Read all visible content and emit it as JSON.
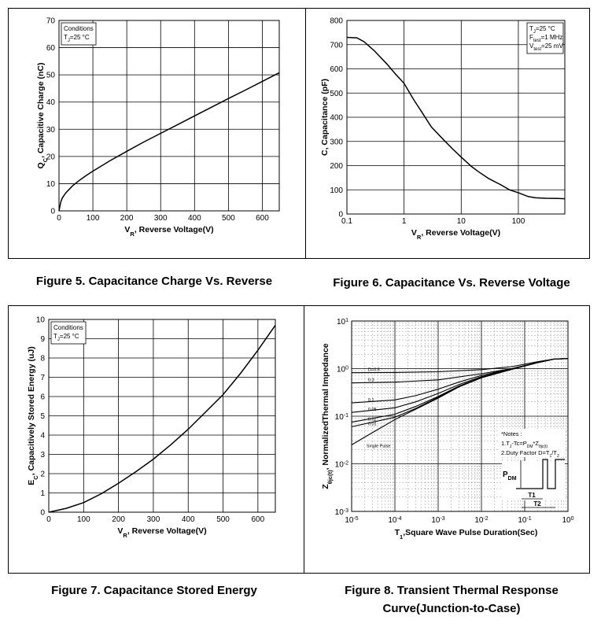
{
  "captions": {
    "fig5": "Figure 5. Capacitance Charge Vs. Reverse",
    "fig6": "Figure 6. Capacitance Vs. Reverse Voltage",
    "fig7": "Figure 7. Capacitance Stored Energy",
    "fig8_line1": "Figure 8. Transient Thermal Response",
    "fig8_line2": "Curve(Junction-to-Case)"
  },
  "chart_data": [
    {
      "id": "fig5",
      "type": "line",
      "xlabel": {
        "main": "V",
        "sub": "R",
        "rest": ", Reverse Voltage(V)"
      },
      "ylabel": {
        "main": "Q",
        "sub": "C",
        "rest": ", Capacitive Charge (nC)"
      },
      "xlim": [
        0,
        650
      ],
      "ylim": [
        0,
        70
      ],
      "xticks": [
        0,
        100,
        200,
        300,
        400,
        500,
        600
      ],
      "yticks": [
        0,
        10,
        20,
        30,
        40,
        50,
        60,
        70
      ],
      "conditions": [
        [
          "Conditions"
        ],
        [
          "T",
          "J",
          "=25 °C"
        ]
      ],
      "series": [
        {
          "x": [
            0,
            5,
            10,
            20,
            40,
            60,
            80,
            100,
            150,
            200,
            250,
            300,
            350,
            400,
            450,
            500,
            550,
            600,
            650
          ],
          "y": [
            0,
            3.2,
            4.8,
            6.6,
            9.2,
            11.2,
            13.0,
            14.6,
            18.4,
            21.9,
            25.3,
            28.5,
            31.7,
            34.9,
            38.1,
            41.3,
            44.4,
            47.6,
            50.8
          ]
        }
      ],
      "grid": true
    },
    {
      "id": "fig6",
      "type": "line",
      "xscale": "log",
      "xlabel": {
        "main": "V",
        "sub": "R",
        "rest": ", Reverse Voltage(V)"
      },
      "ylabel": {
        "main": "C",
        "sub": "",
        "rest": ", Capacitance (pF)"
      },
      "xlim": [
        0.1,
        650
      ],
      "ylim": [
        0,
        800
      ],
      "xticks": [
        0.1,
        1,
        10,
        100
      ],
      "xtick_labels": [
        "0.1",
        "1",
        "10",
        "100"
      ],
      "yticks": [
        0,
        100,
        200,
        300,
        400,
        500,
        600,
        700,
        800
      ],
      "conditions": [
        [
          "T",
          "J",
          "=25 °C"
        ],
        [
          "F",
          "test",
          "=1 MHz"
        ],
        [
          "V",
          "test",
          "=25 mV"
        ]
      ],
      "series": [
        {
          "x": [
            0.1,
            0.15,
            0.2,
            0.3,
            0.5,
            0.7,
            1,
            1.5,
            2,
            3,
            5,
            7,
            10,
            15,
            20,
            30,
            50,
            70,
            100,
            150,
            200,
            300,
            500,
            650
          ],
          "y": [
            730,
            728,
            712,
            675,
            620,
            580,
            540,
            470,
            425,
            360,
            305,
            270,
            235,
            197,
            175,
            147,
            120,
            100,
            88,
            72,
            67,
            65,
            64,
            63
          ]
        }
      ],
      "grid": true
    },
    {
      "id": "fig7",
      "type": "line",
      "xlabel": {
        "main": "V",
        "sub": "R",
        "rest": ", Reverse Voltage(V)"
      },
      "ylabel": {
        "main": "E",
        "sub": "C",
        "rest": ", Capacitively Stored Energy (uJ)"
      },
      "xlim": [
        0,
        650
      ],
      "ylim": [
        0,
        10
      ],
      "xticks": [
        0,
        100,
        200,
        300,
        400,
        500,
        600
      ],
      "yticks": [
        0,
        1,
        2,
        3,
        4,
        5,
        6,
        7,
        8,
        9,
        10
      ],
      "conditions": [
        [
          "Conditions"
        ],
        [
          "T",
          "J",
          "=25 °C"
        ]
      ],
      "series": [
        {
          "x": [
            0,
            50,
            100,
            150,
            200,
            250,
            300,
            350,
            400,
            450,
            500,
            550,
            600,
            650
          ],
          "y": [
            0,
            0.2,
            0.5,
            0.95,
            1.5,
            2.1,
            2.75,
            3.5,
            4.3,
            5.2,
            6.1,
            7.2,
            8.4,
            9.7
          ]
        }
      ],
      "grid": true
    },
    {
      "id": "fig8",
      "type": "line",
      "xscale": "log",
      "yscale": "log",
      "xlabel": {
        "main": "T",
        "sub": "1",
        "rest": ",Square Wave Pulse Duration(Sec)"
      },
      "ylabel": {
        "main": "Z",
        "sub": "θjc(t)",
        "rest": ", NormalizedThermal Impedance"
      },
      "xlim": [
        1e-05,
        1
      ],
      "ylim": [
        0.001,
        10
      ],
      "xtick_exponents": [
        "-5",
        "-4",
        "-3",
        "-2",
        "-1",
        "0"
      ],
      "ytick_exponents": [
        "1",
        "0",
        "-1",
        "-2",
        "-3"
      ],
      "series": [
        {
          "name": "D=0.5",
          "x": [
            1e-05,
            0.0001,
            0.001,
            0.01,
            0.05,
            0.2,
            0.5,
            1
          ],
          "y": [
            0.82,
            0.83,
            0.86,
            0.95,
            1.1,
            1.4,
            1.6,
            1.62
          ]
        },
        {
          "name": "0.3",
          "x": [
            1e-05,
            0.0001,
            0.001,
            0.01,
            0.05,
            0.2,
            0.5,
            1
          ],
          "y": [
            0.5,
            0.52,
            0.58,
            0.78,
            1.0,
            1.35,
            1.6,
            1.62
          ]
        },
        {
          "name": "0.1",
          "x": [
            1e-05,
            0.0001,
            0.0003,
            0.001,
            0.003,
            0.01,
            0.05,
            0.2,
            0.5,
            1
          ],
          "y": [
            0.19,
            0.22,
            0.27,
            0.37,
            0.52,
            0.72,
            1.0,
            1.35,
            1.6,
            1.62
          ]
        },
        {
          "name": "0.05",
          "x": [
            1e-05,
            0.0001,
            0.0003,
            0.001,
            0.003,
            0.01,
            0.05,
            0.2,
            0.5,
            1
          ],
          "y": [
            0.12,
            0.15,
            0.2,
            0.3,
            0.46,
            0.68,
            0.98,
            1.34,
            1.6,
            1.62
          ]
        },
        {
          "name": "0.02",
          "x": [
            1e-05,
            0.0001,
            0.0003,
            0.001,
            0.003,
            0.01,
            0.05,
            0.2,
            0.5,
            1
          ],
          "y": [
            0.075,
            0.11,
            0.16,
            0.26,
            0.43,
            0.66,
            0.97,
            1.34,
            1.6,
            1.62
          ]
        },
        {
          "name": "0.01",
          "x": [
            1e-05,
            0.0001,
            0.0003,
            0.001,
            0.003,
            0.01,
            0.05,
            0.2,
            0.5,
            1
          ],
          "y": [
            0.06,
            0.095,
            0.145,
            0.25,
            0.42,
            0.65,
            0.97,
            1.34,
            1.6,
            1.62
          ]
        },
        {
          "name": "Single Pulse",
          "x": [
            1e-05,
            3e-05,
            0.0001,
            0.0003,
            0.001,
            0.003,
            0.01,
            0.05,
            0.2,
            0.5,
            1
          ],
          "y": [
            0.025,
            0.045,
            0.085,
            0.14,
            0.24,
            0.41,
            0.64,
            0.96,
            1.33,
            1.6,
            1.62
          ]
        }
      ],
      "notes": {
        "title": "*Notes :",
        "line1": "1.T",
        "line1b": "-Tc=P",
        "line1c": "*Z",
        "line1d": "θjc(t)",
        "line2": "2.Duty Factor D=T",
        "line2b": "/T"
      },
      "pulse": {
        "pdm": "P",
        "pdm_sub": "DM",
        "t1": "T1",
        "t2": "T2"
      },
      "grid": true
    }
  ]
}
